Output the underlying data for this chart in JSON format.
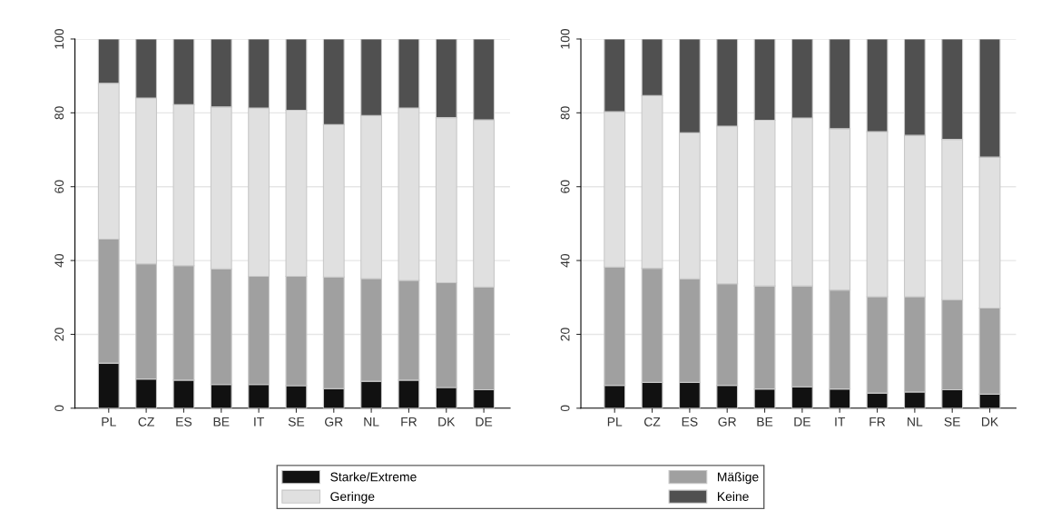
{
  "chart_data": [
    {
      "type": "bar",
      "stacked": true,
      "categories": [
        "PL",
        "CZ",
        "ES",
        "BE",
        "IT",
        "SE",
        "GR",
        "NL",
        "FR",
        "DK",
        "DE"
      ],
      "ylim": [
        0,
        100
      ],
      "yticks": [
        0,
        20,
        40,
        60,
        80,
        100
      ],
      "grid": "y",
      "legend": "bottom",
      "series": [
        {
          "name": "Starke/Extreme",
          "color": "#111111",
          "values": [
            12.2,
            7.9,
            7.6,
            6.4,
            6.4,
            6.1,
            5.3,
            7.3,
            7.6,
            5.6,
            5.0
          ]
        },
        {
          "name": "Mäßige",
          "color": "#a0a0a0",
          "values": [
            33.6,
            31.2,
            31.0,
            31.3,
            29.3,
            29.6,
            30.2,
            27.8,
            27.0,
            28.4,
            27.8
          ]
        },
        {
          "name": "Geringe",
          "color": "#e0e0e0",
          "values": [
            42.2,
            44.9,
            43.6,
            43.9,
            45.6,
            45.0,
            41.3,
            44.2,
            46.7,
            44.7,
            45.3
          ]
        },
        {
          "name": "Keine",
          "color": "#505050",
          "values": [
            12.0,
            16.0,
            17.8,
            18.4,
            18.7,
            19.3,
            23.2,
            20.7,
            18.7,
            21.3,
            21.9
          ]
        }
      ]
    },
    {
      "type": "bar",
      "stacked": true,
      "categories": [
        "PL",
        "CZ",
        "ES",
        "GR",
        "BE",
        "DE",
        "IT",
        "FR",
        "NL",
        "SE",
        "DK"
      ],
      "ylim": [
        0,
        100
      ],
      "yticks": [
        0,
        20,
        40,
        60,
        80,
        100
      ],
      "grid": "y",
      "series": [
        {
          "color": "#111111",
          "values": [
            6.2,
            7.0,
            7.0,
            6.2,
            5.2,
            5.8,
            5.2,
            4.1,
            4.4,
            5.0,
            3.8
          ]
        },
        {
          "color": "#a0a0a0",
          "values": [
            32.0,
            30.9,
            28.0,
            27.5,
            27.9,
            27.3,
            26.8,
            26.1,
            25.8,
            24.4,
            23.3
          ]
        },
        {
          "color": "#e0e0e0",
          "values": [
            42.1,
            46.8,
            39.6,
            42.7,
            44.9,
            45.5,
            43.7,
            44.7,
            43.7,
            43.4,
            40.9
          ]
        },
        {
          "color": "#505050",
          "values": [
            19.7,
            15.3,
            25.4,
            23.6,
            22.0,
            21.4,
            24.3,
            25.1,
            26.1,
            27.2,
            32.0
          ]
        }
      ]
    }
  ]
}
